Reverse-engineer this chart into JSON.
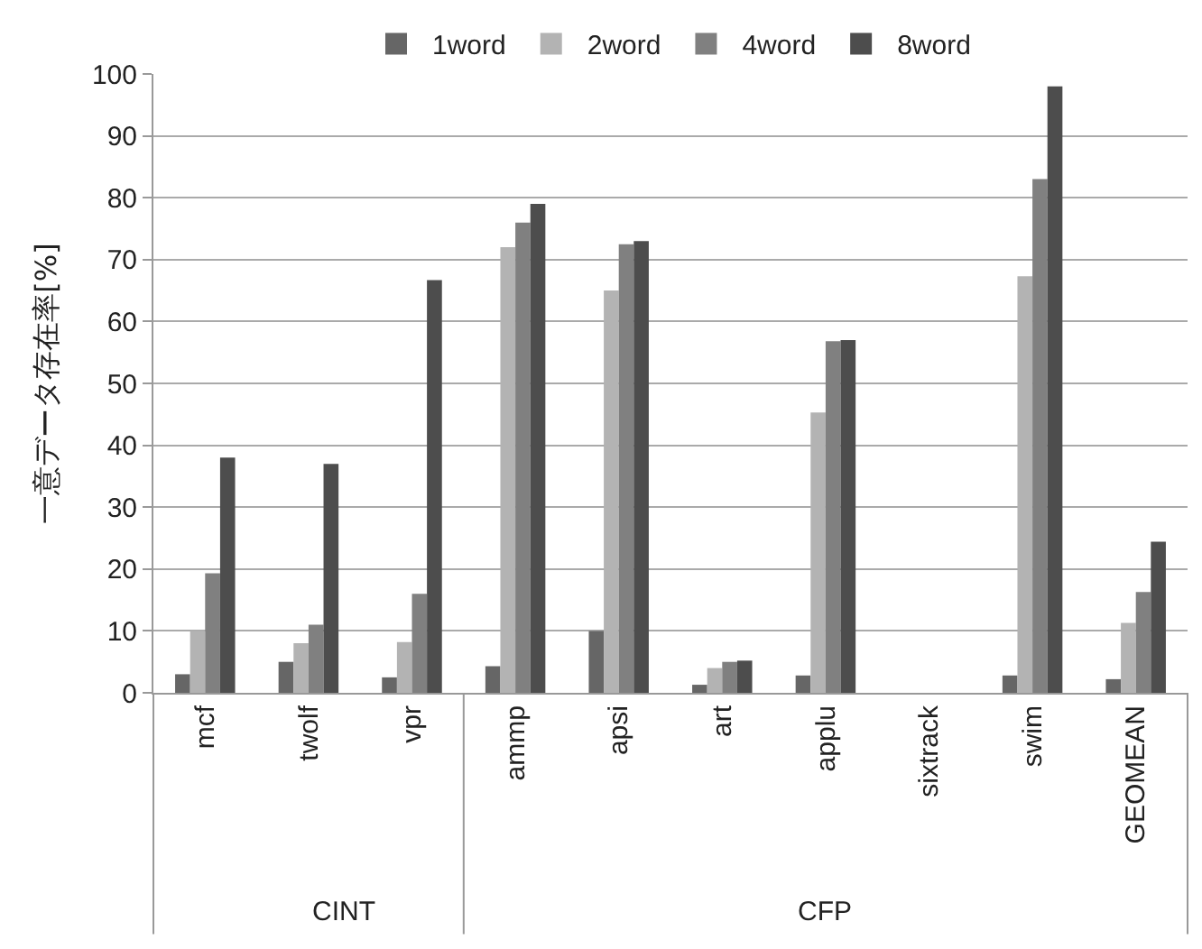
{
  "chart_data": {
    "type": "bar",
    "ylabel": "一意データ存在率[%]",
    "categories": [
      "mcf",
      "twolf",
      "vpr",
      "ammp",
      "apsi",
      "art",
      "applu",
      "sixtrack",
      "swim",
      "GEOMEAN"
    ],
    "series": [
      {
        "name": "1word",
        "color": "#666666",
        "values": [
          3,
          5,
          2.5,
          4.3,
          10,
          1.3,
          2.8,
          null,
          2.8,
          2.2
        ]
      },
      {
        "name": "2word",
        "color": "#b3b3b3",
        "values": [
          10,
          8,
          8.2,
          72,
          65,
          4,
          45.3,
          null,
          67.3,
          11.3
        ]
      },
      {
        "name": "4word",
        "color": "#808080",
        "values": [
          19.3,
          11,
          16,
          76,
          72.5,
          5,
          56.8,
          null,
          83,
          16.3
        ]
      },
      {
        "name": "8word",
        "color": "#4d4d4d",
        "values": [
          38,
          37,
          66.7,
          79,
          73,
          5.2,
          57,
          null,
          98,
          24.4
        ]
      }
    ],
    "ylim": [
      0,
      100
    ],
    "yticks": [
      0,
      10,
      20,
      30,
      40,
      50,
      60,
      70,
      80,
      90,
      100
    ],
    "grid": "y",
    "legend": "top",
    "annotations": [
      "CINT",
      "CFP"
    ]
  }
}
